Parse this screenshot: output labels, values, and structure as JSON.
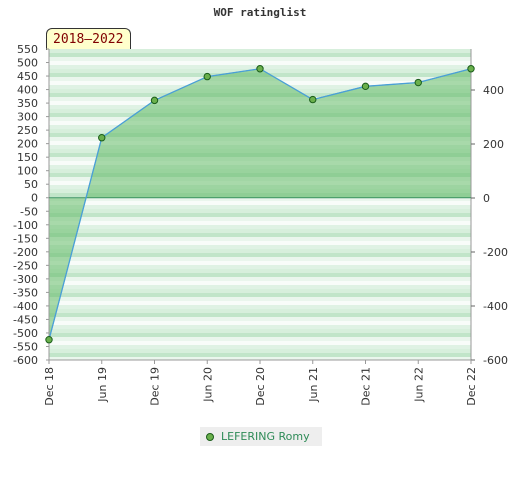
{
  "chart_data": {
    "type": "area",
    "title": "WOF ratinglist",
    "badge": "2018–2022",
    "categories": [
      "Dec 18",
      "Jun 19",
      "Dec 19",
      "Jun 20",
      "Dec 20",
      "Jun 21",
      "Dec 21",
      "Jun 22",
      "Dec 22"
    ],
    "series": [
      {
        "name": "LEFERING Romy",
        "values": [
          -525,
          222,
          360,
          448,
          477,
          363,
          412,
          426,
          477
        ]
      }
    ],
    "left_axis": {
      "ylim": [
        -600,
        550
      ],
      "ticks": [
        550,
        500,
        450,
        400,
        350,
        300,
        250,
        200,
        150,
        100,
        50,
        0,
        -50,
        -100,
        -150,
        -200,
        -250,
        -300,
        -350,
        -400,
        -450,
        -500,
        -550,
        -600
      ]
    },
    "right_axis": {
      "ticks": [
        400,
        200,
        0,
        -200,
        -400,
        -600
      ]
    },
    "legend_position": "bottom-center",
    "colors": {
      "line": "#4a9fd8",
      "fill": "#66bb6a",
      "marker": "#6ab04c",
      "marker_edge": "#1a5d1a"
    }
  }
}
